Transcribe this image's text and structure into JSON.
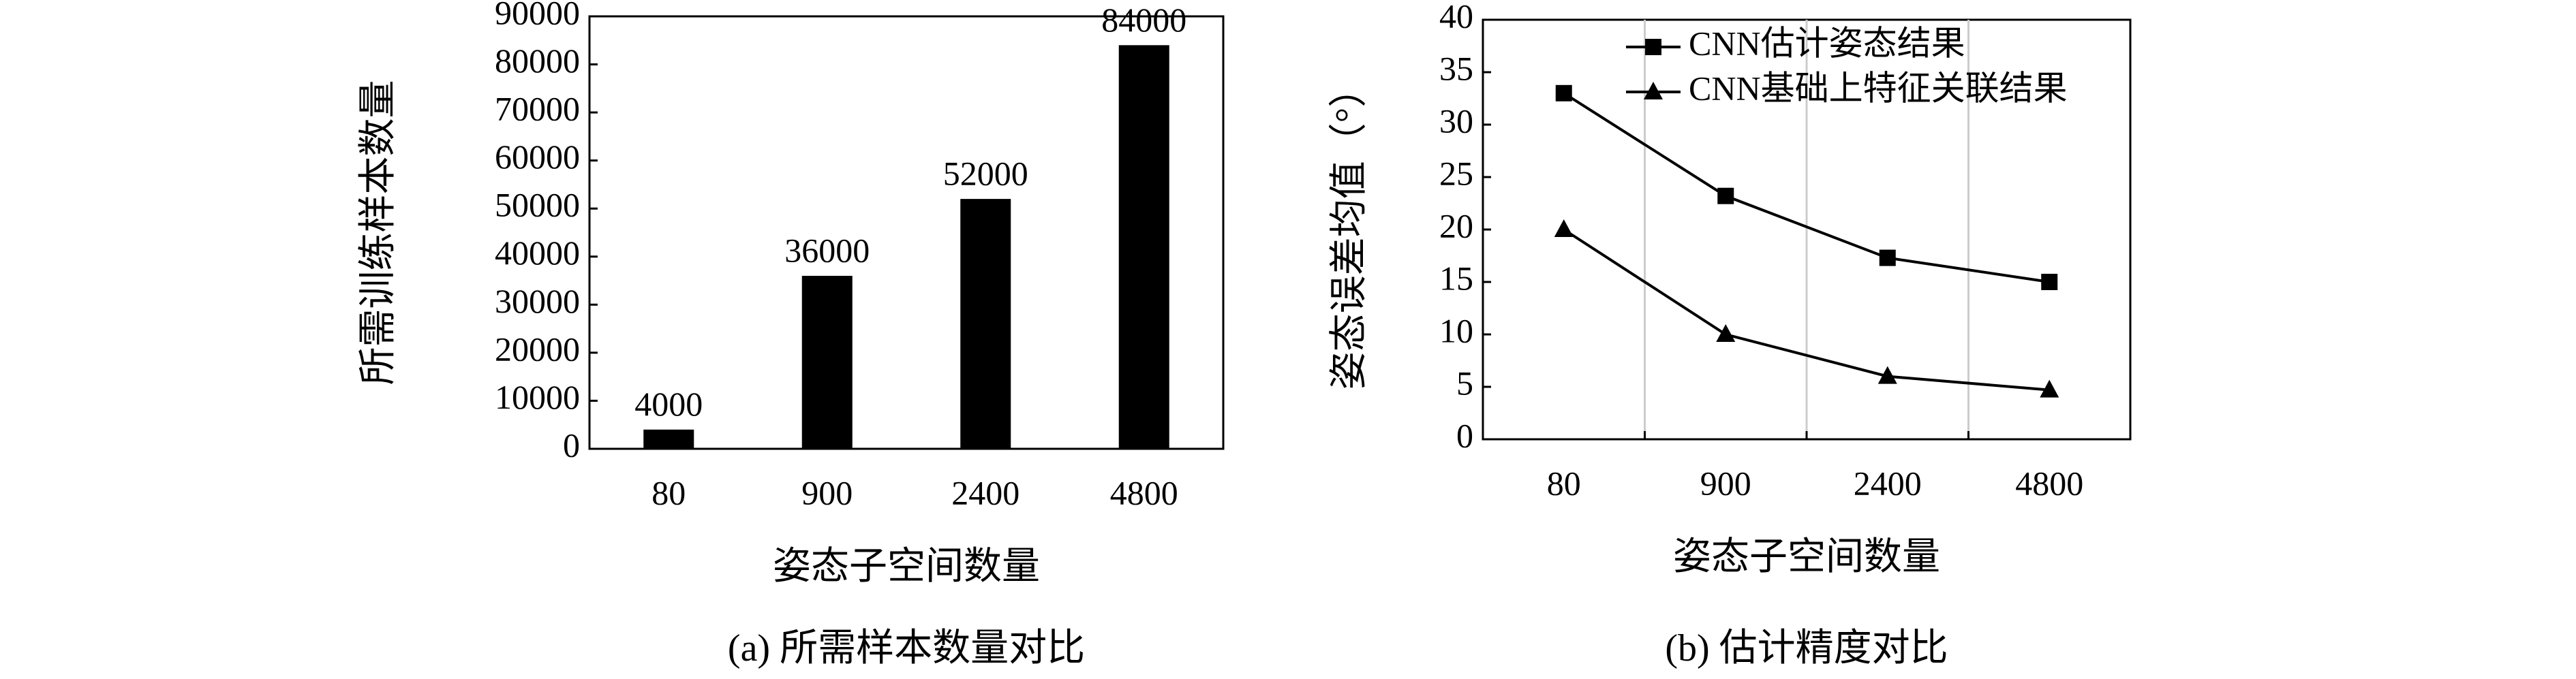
{
  "chart_data": [
    {
      "type": "bar",
      "title": "(a) 所需样本数量对比",
      "x_label": "姿态子空间数量",
      "y_label": "所需训练样本数量",
      "categories": [
        "80",
        "900",
        "2400",
        "4800"
      ],
      "values": [
        4000,
        36000,
        52000,
        84000
      ],
      "color": "#000000",
      "ylim": [
        0,
        90000
      ],
      "yticks": [
        0,
        10000,
        20000,
        30000,
        40000,
        50000,
        60000,
        70000,
        80000,
        90000
      ],
      "value_labels_shown": true
    },
    {
      "type": "line",
      "title": "(b) 估计精度对比",
      "x_label": "姿态子空间数量",
      "y_label": "姿态误差均值（°）",
      "categories": [
        "80",
        "900",
        "2400",
        "4800"
      ],
      "series": [
        {
          "name": "CNN估计姿态结果",
          "color": "#000000",
          "marker": "square",
          "values": [
            33,
            23.2,
            17.3,
            15
          ]
        },
        {
          "name": "CNN基础上特征关联结果",
          "color": "#000000",
          "marker": "triangle",
          "values": [
            20,
            10,
            6,
            4.7
          ]
        }
      ],
      "ylim": [
        0,
        40
      ],
      "yticks": [
        0,
        5,
        10,
        15,
        20,
        25,
        30,
        35,
        40
      ],
      "grid": true,
      "legend": "upper left"
    }
  ]
}
